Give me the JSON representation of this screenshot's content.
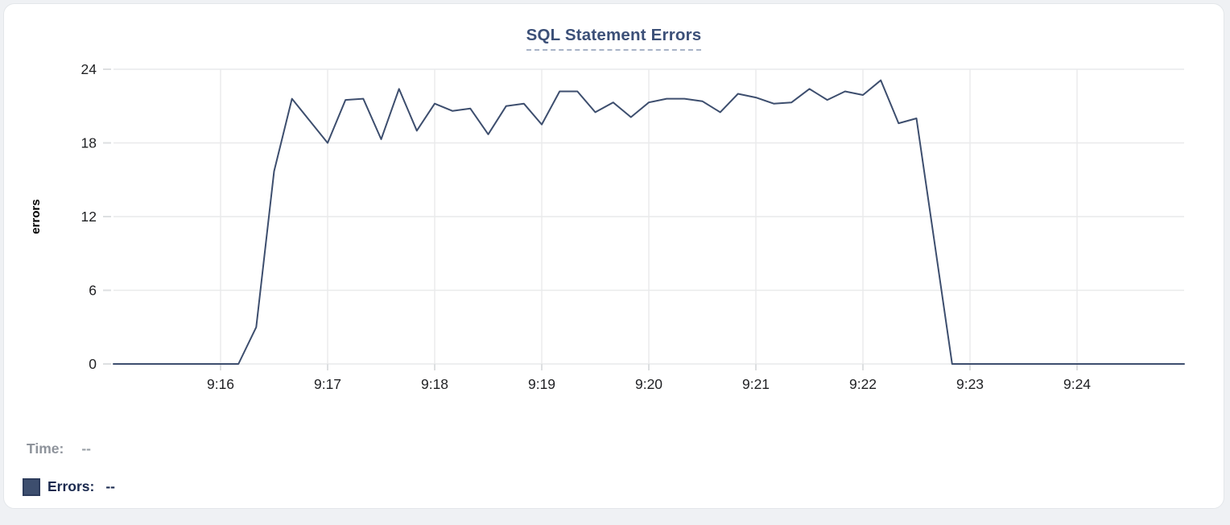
{
  "card": {
    "background": "#ffffff",
    "border_color": "#e3e6ea"
  },
  "chart_data": {
    "type": "line",
    "title": "SQL Statement Errors",
    "xlabel": "",
    "ylabel": "errors",
    "grid": true,
    "legend_position": "bottom-left",
    "ylim": [
      0,
      24
    ],
    "y_ticks": [
      0,
      6,
      12,
      18,
      24
    ],
    "xlim_seconds": [
      0,
      600
    ],
    "x_start_time": "9:15:00",
    "x_end_time": "9:25:00",
    "point_interval_seconds": 10,
    "x_tick_labels": [
      "9:16",
      "9:17",
      "9:18",
      "9:19",
      "9:20",
      "9:21",
      "9:22",
      "9:23",
      "9:24"
    ],
    "x_tick_seconds": [
      60,
      120,
      180,
      240,
      300,
      360,
      420,
      480,
      540
    ],
    "series": [
      {
        "name": "Errors",
        "color": "#3d4e6e",
        "values": [
          0,
          0,
          0,
          0,
          0,
          0,
          0,
          0,
          3,
          15.7,
          21.6,
          19.8,
          18,
          21.5,
          21.6,
          18.3,
          22.4,
          19,
          21.2,
          20.6,
          20.8,
          18.7,
          21,
          21.2,
          19.5,
          22.2,
          22.2,
          20.5,
          21.3,
          20.1,
          21.3,
          21.6,
          21.6,
          21.4,
          20.5,
          22,
          21.7,
          21.2,
          21.3,
          22.4,
          21.5,
          22.2,
          21.9,
          23.1,
          19.6,
          20,
          10,
          0,
          0,
          0,
          0,
          0,
          0,
          0,
          0,
          0,
          0,
          0,
          0,
          0,
          0
        ]
      }
    ],
    "colors": {
      "grid": "#e9eaeb",
      "tick_mark": "#dddfe1",
      "tick_label": "#1f2023",
      "axis_title": "#000000",
      "title": "#3c5078",
      "title_underline": "#a8b3c7"
    }
  },
  "tooltip": {
    "time_label": "Time:",
    "time_value": "--",
    "errors_label": "Errors:",
    "errors_value": "--",
    "swatch_color": "#3d4e6e",
    "swatch_border_color": "#2d3c5c"
  }
}
